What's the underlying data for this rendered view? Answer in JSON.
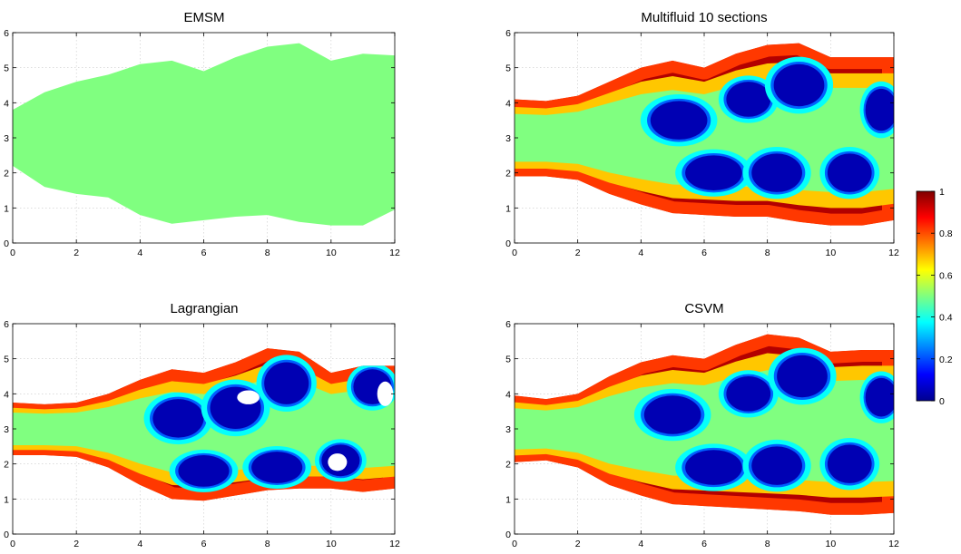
{
  "chart_data": [
    {
      "type": "heatmap",
      "title": "EMSM",
      "xlim": [
        0,
        12
      ],
      "ylim": [
        0,
        6
      ],
      "xticks": [
        0,
        2,
        4,
        6,
        8,
        10,
        12
      ],
      "yticks": [
        0,
        1,
        2,
        3,
        4,
        5,
        6
      ],
      "grid": true,
      "fill_value": 0.5,
      "region": {
        "x": [
          0,
          1,
          2,
          3,
          4,
          5,
          6,
          7,
          8,
          9,
          10,
          11,
          12
        ],
        "upper": [
          3.8,
          4.3,
          4.6,
          4.8,
          5.1,
          5.2,
          4.9,
          5.3,
          5.6,
          5.7,
          5.2,
          5.4,
          5.35
        ],
        "lower": [
          2.2,
          1.6,
          1.4,
          1.3,
          0.8,
          0.55,
          0.65,
          0.75,
          0.8,
          0.6,
          0.5,
          0.5,
          0.95
        ]
      }
    },
    {
      "type": "heatmap",
      "title": "Multifluid 10 sections",
      "xlim": [
        0,
        12
      ],
      "ylim": [
        0,
        6
      ],
      "xticks": [
        0,
        2,
        4,
        6,
        8,
        10,
        12
      ],
      "yticks": [
        0,
        1,
        2,
        3,
        4,
        5,
        6
      ],
      "grid": true,
      "edge_value": 0.95,
      "jet_core_value": 0.5,
      "region": {
        "x": [
          0,
          1,
          2,
          3,
          4,
          5,
          6,
          7,
          8,
          9,
          10,
          11,
          12
        ],
        "upper": [
          4.1,
          4.05,
          4.2,
          4.6,
          5.0,
          5.2,
          5.0,
          5.4,
          5.65,
          5.7,
          5.3,
          5.3,
          5.3
        ],
        "lower": [
          1.9,
          1.9,
          1.8,
          1.4,
          1.1,
          0.85,
          0.8,
          0.75,
          0.75,
          0.6,
          0.5,
          0.5,
          0.65
        ]
      },
      "vortices": [
        {
          "x": 5.2,
          "y": 3.5,
          "rx": 0.9,
          "ry": 0.55,
          "value": 0.05
        },
        {
          "x": 7.4,
          "y": 4.1,
          "rx": 0.7,
          "ry": 0.5,
          "value": 0.05
        },
        {
          "x": 9.0,
          "y": 4.5,
          "rx": 0.8,
          "ry": 0.6,
          "value": 0.05
        },
        {
          "x": 11.6,
          "y": 3.8,
          "rx": 0.5,
          "ry": 0.6,
          "value": 0.05
        },
        {
          "x": 6.3,
          "y": 2.0,
          "rx": 0.9,
          "ry": 0.5,
          "value": 0.05
        },
        {
          "x": 8.3,
          "y": 2.0,
          "rx": 0.8,
          "ry": 0.55,
          "value": 0.05
        },
        {
          "x": 10.6,
          "y": 2.0,
          "rx": 0.7,
          "ry": 0.55,
          "value": 0.05
        }
      ]
    },
    {
      "type": "heatmap",
      "title": "Lagrangian",
      "xlim": [
        0,
        12
      ],
      "ylim": [
        0,
        6
      ],
      "xticks": [
        0,
        2,
        4,
        6,
        8,
        10,
        12
      ],
      "yticks": [
        0,
        1,
        2,
        3,
        4,
        5,
        6
      ],
      "grid": true,
      "edge_value": 0.95,
      "jet_core_value": 0.5,
      "region": {
        "x": [
          0,
          1,
          2,
          3,
          4,
          5,
          6,
          7,
          8,
          9,
          10,
          11,
          12
        ],
        "upper": [
          3.75,
          3.7,
          3.75,
          4.0,
          4.4,
          4.7,
          4.6,
          4.9,
          5.3,
          5.2,
          4.6,
          4.8,
          4.8
        ],
        "lower": [
          2.25,
          2.25,
          2.2,
          1.9,
          1.4,
          1.0,
          0.95,
          1.1,
          1.25,
          1.3,
          1.3,
          1.2,
          1.3
        ]
      },
      "vortices": [
        {
          "x": 5.2,
          "y": 3.3,
          "rx": 0.8,
          "ry": 0.55,
          "value": 0.05
        },
        {
          "x": 7.0,
          "y": 3.6,
          "rx": 0.8,
          "ry": 0.6,
          "value": 0.05
        },
        {
          "x": 8.6,
          "y": 4.3,
          "rx": 0.7,
          "ry": 0.6,
          "value": 0.05
        },
        {
          "x": 11.3,
          "y": 4.2,
          "rx": 0.6,
          "ry": 0.5,
          "value": 0.05
        },
        {
          "x": 6.0,
          "y": 1.8,
          "rx": 0.8,
          "ry": 0.45,
          "value": 0.05
        },
        {
          "x": 8.3,
          "y": 1.9,
          "rx": 0.8,
          "ry": 0.45,
          "value": 0.05
        },
        {
          "x": 10.3,
          "y": 2.1,
          "rx": 0.6,
          "ry": 0.45,
          "value": 0.05
        }
      ],
      "empty_regions": [
        {
          "x": 7.4,
          "y": 3.9,
          "rx": 0.35,
          "ry": 0.2
        },
        {
          "x": 11.7,
          "y": 4.0,
          "rx": 0.25,
          "ry": 0.35
        },
        {
          "x": 10.2,
          "y": 2.05,
          "rx": 0.3,
          "ry": 0.25
        }
      ]
    },
    {
      "type": "heatmap",
      "title": "CSVM",
      "xlim": [
        0,
        12
      ],
      "ylim": [
        0,
        6
      ],
      "xticks": [
        0,
        2,
        4,
        6,
        8,
        10,
        12
      ],
      "yticks": [
        0,
        1,
        2,
        3,
        4,
        5,
        6
      ],
      "grid": true,
      "edge_value": 0.95,
      "jet_core_value": 0.5,
      "region": {
        "x": [
          0,
          1,
          2,
          3,
          4,
          5,
          6,
          7,
          8,
          9,
          10,
          11,
          12
        ],
        "upper": [
          3.95,
          3.85,
          4.0,
          4.5,
          4.9,
          5.1,
          5.0,
          5.4,
          5.7,
          5.6,
          5.2,
          5.25,
          5.25
        ],
        "lower": [
          2.05,
          2.1,
          1.9,
          1.4,
          1.1,
          0.85,
          0.8,
          0.75,
          0.7,
          0.65,
          0.55,
          0.55,
          0.6
        ]
      },
      "vortices": [
        {
          "x": 5.0,
          "y": 3.4,
          "rx": 0.9,
          "ry": 0.55,
          "value": 0.05
        },
        {
          "x": 7.4,
          "y": 4.0,
          "rx": 0.7,
          "ry": 0.5,
          "value": 0.05
        },
        {
          "x": 9.1,
          "y": 4.5,
          "rx": 0.8,
          "ry": 0.6,
          "value": 0.05
        },
        {
          "x": 11.6,
          "y": 3.9,
          "rx": 0.5,
          "ry": 0.55,
          "value": 0.05
        },
        {
          "x": 6.3,
          "y": 1.9,
          "rx": 0.9,
          "ry": 0.5,
          "value": 0.05
        },
        {
          "x": 8.3,
          "y": 1.95,
          "rx": 0.8,
          "ry": 0.55,
          "value": 0.05
        },
        {
          "x": 10.6,
          "y": 2.0,
          "rx": 0.7,
          "ry": 0.55,
          "value": 0.05
        }
      ]
    }
  ],
  "colorbar": {
    "colormap": "jet",
    "range": [
      0,
      1
    ],
    "ticks": [
      {
        "value": 0,
        "label": "0"
      },
      {
        "value": 0.2,
        "label": "0.2"
      },
      {
        "value": 0.4,
        "label": "0.4"
      },
      {
        "value": 0.6,
        "label": "0.6"
      },
      {
        "value": 0.8,
        "label": "0.8"
      },
      {
        "value": 1,
        "label": "1"
      }
    ]
  }
}
